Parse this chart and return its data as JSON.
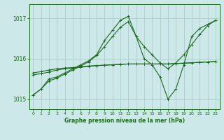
{
  "background_color": "#cce8e8",
  "grid_color": "#aacccc",
  "line_color": "#1a6b1a",
  "title": "Graphe pression niveau de la mer (hPa)",
  "xlim": [
    -0.5,
    23.5
  ],
  "ylim": [
    1014.75,
    1017.35
  ],
  "yticks": [
    1015,
    1016,
    1017
  ],
  "xticks": [
    0,
    1,
    2,
    3,
    4,
    5,
    6,
    7,
    8,
    9,
    10,
    11,
    12,
    13,
    14,
    15,
    16,
    17,
    18,
    19,
    20,
    21,
    22,
    23
  ],
  "series": [
    {
      "x": [
        0,
        1,
        2,
        3,
        4,
        5,
        6,
        7,
        8,
        9,
        10,
        11,
        12,
        13,
        14,
        15,
        16,
        17,
        18,
        19,
        20,
        21,
        22,
        23
      ],
      "y": [
        1015.65,
        1015.68,
        1015.72,
        1015.75,
        1015.77,
        1015.78,
        1015.8,
        1015.82,
        1015.83,
        1015.84,
        1015.85,
        1015.86,
        1015.87,
        1015.87,
        1015.87,
        1015.87,
        1015.87,
        1015.87,
        1015.88,
        1015.89,
        1015.9,
        1015.91,
        1015.92,
        1015.93
      ]
    },
    {
      "x": [
        0,
        1,
        2,
        3,
        4,
        5,
        6,
        7,
        8,
        9,
        10,
        11,
        12,
        13,
        14,
        15,
        16,
        17,
        18,
        19,
        20,
        21,
        22,
        23
      ],
      "y": [
        1015.6,
        1015.63,
        1015.67,
        1015.72,
        1015.75,
        1015.77,
        1015.79,
        1015.81,
        1015.83,
        1015.84,
        1015.85,
        1015.86,
        1015.87,
        1015.87,
        1015.87,
        1015.87,
        1015.87,
        1015.87,
        1015.88,
        1015.89,
        1015.9,
        1015.91,
        1015.92,
        1015.93
      ]
    },
    {
      "x": [
        0,
        1,
        2,
        3,
        4,
        5,
        6,
        7,
        8,
        9,
        10,
        11,
        12,
        13,
        14,
        15,
        16,
        17,
        18,
        19,
        20,
        21,
        22,
        23
      ],
      "y": [
        1015.1,
        1015.25,
        1015.5,
        1015.55,
        1015.65,
        1015.75,
        1015.85,
        1015.95,
        1016.1,
        1016.45,
        1016.7,
        1016.95,
        1017.05,
        1016.55,
        1016.0,
        1015.85,
        1015.55,
        1015.0,
        1015.25,
        1015.85,
        1016.55,
        1016.75,
        1016.85,
        1016.95
      ]
    },
    {
      "x": [
        0,
        1,
        2,
        3,
        4,
        5,
        6,
        7,
        8,
        9,
        10,
        11,
        12,
        13,
        14,
        15,
        16,
        17,
        18,
        19,
        20,
        21,
        22,
        23
      ],
      "y": [
        1015.1,
        1015.25,
        1015.45,
        1015.52,
        1015.62,
        1015.72,
        1015.82,
        1015.92,
        1016.08,
        1016.3,
        1016.55,
        1016.78,
        1016.92,
        1016.55,
        1016.3,
        1016.1,
        1015.9,
        1015.75,
        1015.9,
        1016.1,
        1016.35,
        1016.6,
        1016.82,
        1016.95
      ]
    }
  ]
}
